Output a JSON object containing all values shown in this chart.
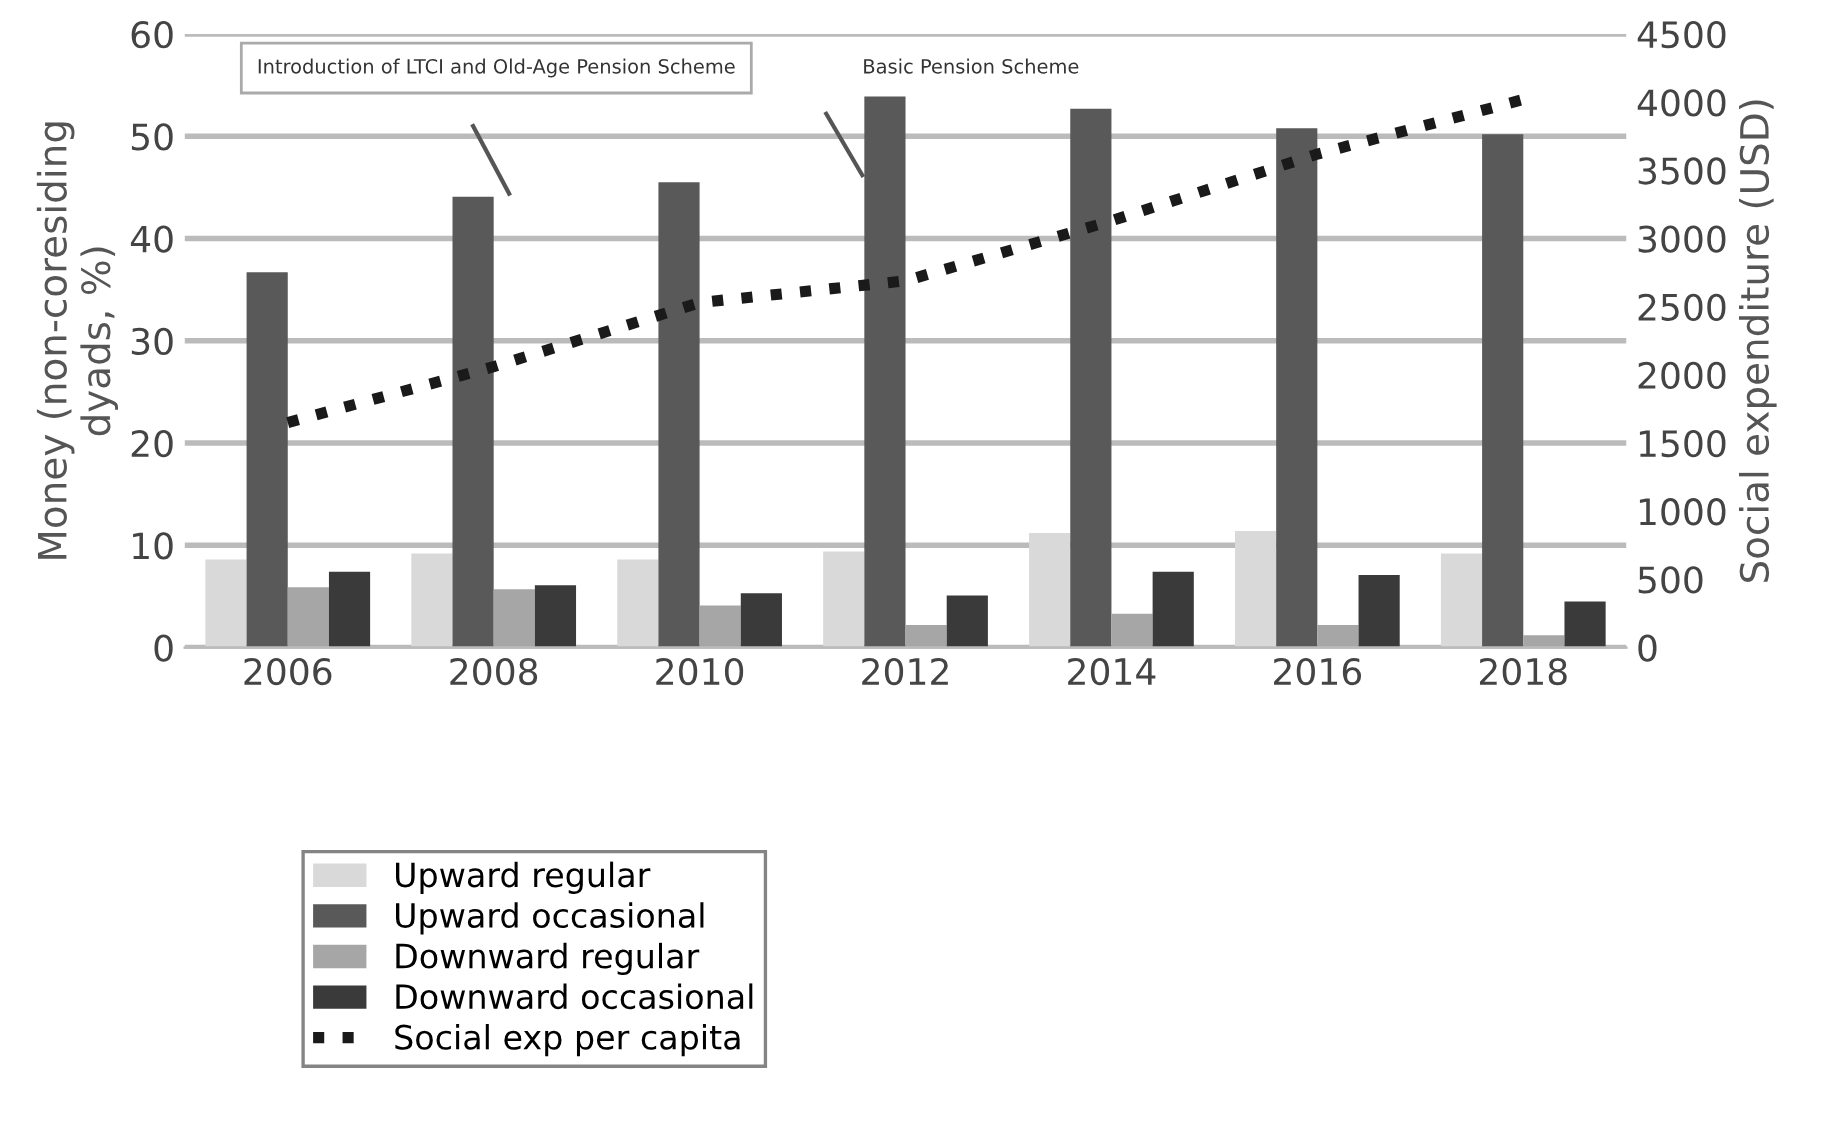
{
  "chart_data": {
    "type": "bar",
    "ylabel": "Money (non-coresiding\ndyads, %)",
    "y2label": "Social expenditure (USD)",
    "categories": [
      "2006",
      "2008",
      "2010",
      "2012",
      "2014",
      "2016",
      "2018"
    ],
    "series": [
      {
        "name": "Upward regular",
        "color": "#d9d9d9",
        "values": [
          8.6,
          9.2,
          8.6,
          9.4,
          11.2,
          11.4,
          9.2
        ]
      },
      {
        "name": "Upward occasional",
        "color": "#595959",
        "values": [
          36.7,
          44.1,
          45.5,
          53.9,
          52.7,
          50.8,
          50.2
        ]
      },
      {
        "name": "Downward regular",
        "color": "#a6a6a6",
        "values": [
          5.9,
          5.7,
          4.1,
          2.2,
          3.3,
          2.2,
          1.2
        ]
      },
      {
        "name": "Downward occasional",
        "color": "#3a3a3a",
        "values": [
          7.4,
          6.1,
          5.3,
          5.1,
          7.4,
          7.1,
          4.5
        ]
      },
      {
        "name": "Social exp per capita",
        "type": "line",
        "axis": "y2",
        "color": "#1a1a1a",
        "line_style": "dotted",
        "values": [
          1650,
          2060,
          2530,
          2690,
          3130,
          3620,
          4020
        ]
      }
    ],
    "ylim": [
      0,
      60
    ],
    "yticks": [
      0,
      10,
      20,
      30,
      40,
      50,
      60
    ],
    "y2lim": [
      0,
      4500
    ],
    "y2ticks": [
      0,
      500,
      1000,
      1500,
      2000,
      2500,
      3000,
      3500,
      4000,
      4500
    ],
    "grid": "y",
    "legend": "bottom",
    "annotations": [
      "Introduction of LTCI and Old-Age Pension Scheme",
      "Basic Pension Scheme"
    ]
  }
}
